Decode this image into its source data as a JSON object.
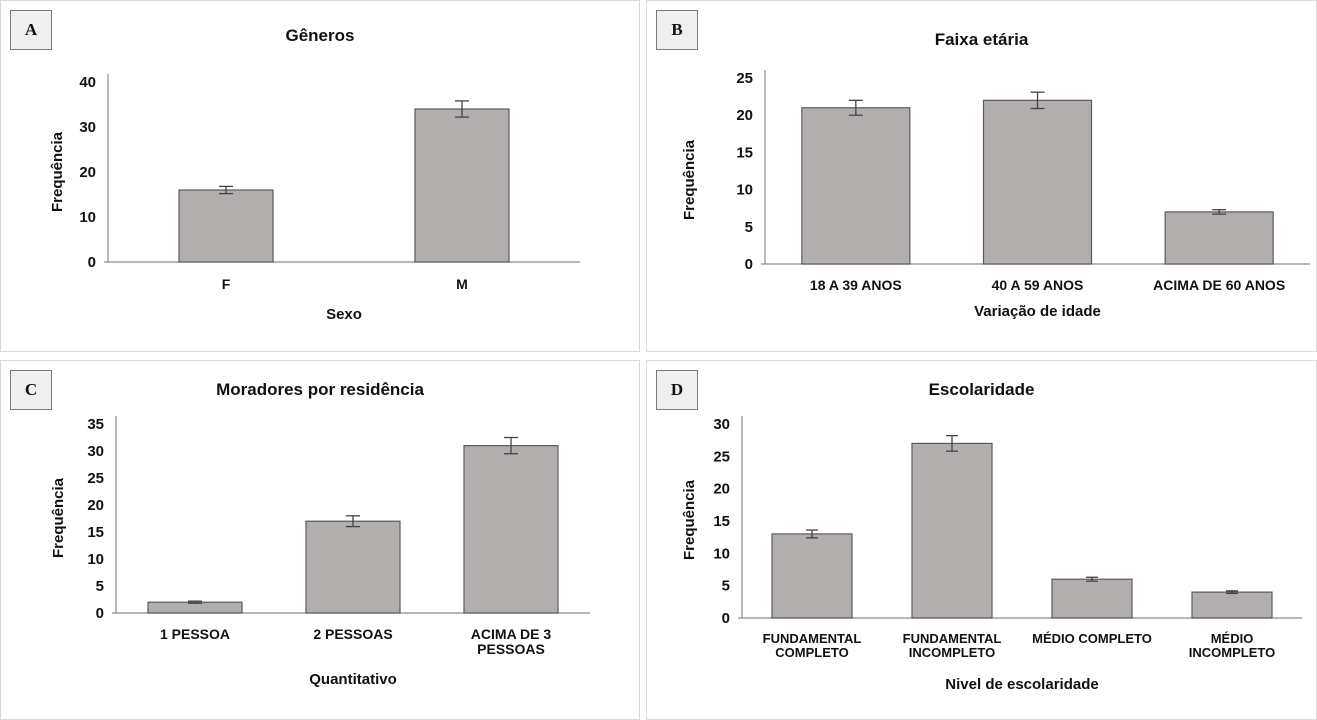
{
  "chart_data": [
    {
      "panel_label": "A",
      "type": "bar",
      "title": "Gêneros",
      "xlabel": "Sexo",
      "ylabel": "Frequência",
      "categories": [
        "F",
        "M"
      ],
      "values": [
        16,
        34
      ],
      "errors": [
        0.8,
        1.8
      ],
      "ylim": [
        0,
        40
      ],
      "yticks": [
        0,
        10,
        20,
        30,
        40
      ],
      "grid": false,
      "bar_color": "#b3aeae"
    },
    {
      "panel_label": "B",
      "type": "bar",
      "title": "Faixa etária",
      "xlabel": "Variação de idade",
      "ylabel": "Frequência",
      "categories": [
        "18 A 39 ANOS",
        "40 A 59 ANOS",
        "ACIMA DE 60 ANOS"
      ],
      "values": [
        21,
        22,
        7
      ],
      "errors": [
        1,
        1.1,
        0.3
      ],
      "ylim": [
        0,
        25
      ],
      "yticks": [
        0,
        5,
        10,
        15,
        20,
        25
      ],
      "grid": false,
      "bar_color": "#b3aeae"
    },
    {
      "panel_label": "C",
      "type": "bar",
      "title": "Moradores por residência",
      "xlabel": "Quantitativo",
      "ylabel": "Frequência",
      "categories": [
        "1 PESSOA",
        "2 PESSOAS",
        "ACIMA DE 3 PESSOAS"
      ],
      "values": [
        2,
        17,
        31
      ],
      "errors": [
        0.2,
        1,
        1.5
      ],
      "ylim": [
        0,
        35
      ],
      "yticks": [
        0,
        5,
        10,
        15,
        20,
        25,
        30,
        35
      ],
      "grid": false,
      "bar_color": "#b3aeae"
    },
    {
      "panel_label": "D",
      "type": "bar",
      "title": "Escolaridade",
      "xlabel": "Nivel de escolaridade",
      "ylabel": "Frequência",
      "categories": [
        "FUNDAMENTAL COMPLETO",
        "FUNDAMENTAL INCOMPLETO",
        "MÉDIO COMPLETO",
        "MÉDIO INCOMPLETO"
      ],
      "values": [
        13,
        27,
        6,
        4
      ],
      "errors": [
        0.6,
        1.2,
        0.3,
        0.2
      ],
      "ylim": [
        0,
        30
      ],
      "yticks": [
        0,
        5,
        10,
        15,
        20,
        25,
        30
      ],
      "grid": false,
      "bar_color": "#b3aeae"
    }
  ]
}
